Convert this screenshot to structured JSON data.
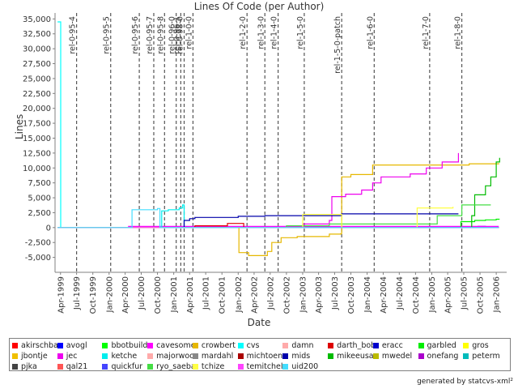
{
  "chart_data": {
    "type": "line",
    "title": "Lines Of Code (per Author)",
    "xlabel": "Date",
    "ylabel": "Lines",
    "xlim": [
      "1999-03-01",
      "2006-03-01"
    ],
    "ylim": [
      -7500,
      36000
    ],
    "y_ticks": [
      -5000,
      -2500,
      0,
      2500,
      5000,
      7500,
      10000,
      12500,
      15000,
      17500,
      20000,
      22500,
      25000,
      27500,
      30000,
      32500,
      35000
    ],
    "y_tick_labels": [
      "-5,000",
      "-2,500",
      "0",
      "2,500",
      "5,000",
      "7,500",
      "10,000",
      "12,500",
      "15,000",
      "17,500",
      "20,000",
      "22,500",
      "25,000",
      "27,500",
      "30,000",
      "32,500",
      "35,000"
    ],
    "x_ticks": [
      "1999-04-01",
      "1999-07-01",
      "1999-10-01",
      "2000-01-01",
      "2000-04-01",
      "2000-07-01",
      "2000-10-01",
      "2001-01-01",
      "2001-04-01",
      "2001-07-01",
      "2001-10-01",
      "2002-01-01",
      "2002-04-01",
      "2002-07-01",
      "2002-10-01",
      "2003-01-01",
      "2003-04-01",
      "2003-07-01",
      "2003-10-01",
      "2004-01-01",
      "2004-04-01",
      "2004-07-01",
      "2004-10-01",
      "2005-01-01",
      "2005-04-01",
      "2005-07-01",
      "2005-10-01",
      "2006-01-01"
    ],
    "x_tick_labels": [
      "Apr-1999",
      "Jul-1999",
      "Oct-1999",
      "Jan-2000",
      "Apr-2000",
      "Jul-2000",
      "Oct-2000",
      "Jan-2001",
      "Apr-2001",
      "Jul-2001",
      "Oct-2001",
      "Jan-2002",
      "Apr-2002",
      "Jul-2002",
      "Oct-2002",
      "Jan-2003",
      "Apr-2003",
      "Jul-2003",
      "Oct-2003",
      "Jan-2004",
      "Apr-2004",
      "Jul-2004",
      "Oct-2004",
      "Jan-2005",
      "Apr-2005",
      "Jul-2005",
      "Oct-2005",
      "Jan-2006"
    ],
    "grid": false,
    "legend_position": "bottom",
    "markers": [
      {
        "date": "1999-07-01",
        "label": "rel-0-95-4"
      },
      {
        "date": "2000-01-10",
        "label": "rel-0-95-5"
      },
      {
        "date": "2000-06-20",
        "label": "rel-0-95-6"
      },
      {
        "date": "2000-09-10",
        "label": "rel-0-95-7"
      },
      {
        "date": "2000-11-10",
        "label": "rel-0-95-8"
      },
      {
        "date": "2001-01-15",
        "label": "rel-0-96-0"
      },
      {
        "date": "2001-02-10",
        "label": "rel-0-96-1"
      },
      {
        "date": "2001-03-01",
        "label": "rel-0-98-0"
      },
      {
        "date": "2001-04-20",
        "label": "rel-1-0-0"
      },
      {
        "date": "2002-02-20",
        "label": "rel-1-2-0"
      },
      {
        "date": "2002-06-01",
        "label": "rel-1-3-0"
      },
      {
        "date": "2002-08-15",
        "label": "rel-1-4-0"
      },
      {
        "date": "2003-01-10",
        "label": "rel-1-5-0"
      },
      {
        "date": "2003-08-10",
        "label": "rel-1-5-0-patch"
      },
      {
        "date": "2004-02-10",
        "label": "rel-1-6-0"
      },
      {
        "date": "2004-12-20",
        "label": "rel-1-7-0"
      },
      {
        "date": "2005-06-20",
        "label": "rel-1-8-0"
      }
    ],
    "series": [
      {
        "name": "akirschbaum",
        "color": "#ff0000",
        "points": [
          [
            "1999-03-15",
            0
          ],
          [
            "2006-01-15",
            0
          ]
        ]
      },
      {
        "name": "avogl",
        "color": "#0000ff",
        "points": [
          [
            "1999-03-15",
            0
          ],
          [
            "2005-09-01",
            0
          ],
          [
            "2005-09-20",
            200
          ],
          [
            "2005-11-01",
            150
          ],
          [
            "2005-12-01",
            0
          ]
        ]
      },
      {
        "name": "bbotbuilder",
        "color": "#00ff00",
        "points": [
          [
            "1999-03-15",
            0
          ],
          [
            "2006-01-15",
            0
          ]
        ]
      },
      {
        "name": "cavesomething",
        "color": "#ff00ff",
        "points": [
          [
            "1999-03-15",
            0
          ],
          [
            "2000-03-20",
            0
          ],
          [
            "2000-04-20",
            200
          ],
          [
            "2006-01-15",
            200
          ]
        ]
      },
      {
        "name": "crowbert",
        "color": "#e6b800",
        "points": [
          [
            "1999-03-15",
            0
          ],
          [
            "2001-06-01",
            0
          ],
          [
            "2001-12-20",
            0
          ],
          [
            "2002-01-05",
            -4200
          ],
          [
            "2002-03-01",
            -4700
          ],
          [
            "2002-06-01",
            -4700
          ],
          [
            "2002-06-15",
            -4000
          ],
          [
            "2002-07-10",
            -2500
          ],
          [
            "2002-09-01",
            -1700
          ],
          [
            "2002-12-01",
            -1500
          ],
          [
            "2003-06-01",
            -1100
          ],
          [
            "2003-08-05",
            -1000
          ],
          [
            "2003-08-10",
            8500
          ],
          [
            "2003-10-01",
            8900
          ],
          [
            "2004-02-01",
            10500
          ],
          [
            "2005-06-01",
            10500
          ],
          [
            "2005-08-01",
            10700
          ],
          [
            "2006-01-15",
            10800
          ]
        ]
      },
      {
        "name": "cvs",
        "color": "#00ffff",
        "points": [
          [
            "1999-03-15",
            34500
          ],
          [
            "1999-04-01",
            34500
          ],
          [
            "1999-04-02",
            0
          ],
          [
            "2006-01-15",
            0
          ]
        ]
      },
      {
        "name": "damn",
        "color": "#ffaaaa",
        "points": [
          [
            "1999-03-15",
            0
          ],
          [
            "2006-01-15",
            0
          ]
        ]
      },
      {
        "name": "darth_bob",
        "color": "#dd0000",
        "points": [
          [
            "1999-03-15",
            0
          ],
          [
            "2001-03-01",
            0
          ],
          [
            "2001-05-01",
            300
          ],
          [
            "2001-09-01",
            300
          ],
          [
            "2001-11-01",
            700
          ],
          [
            "2002-01-01",
            700
          ],
          [
            "2002-02-01",
            0
          ],
          [
            "2006-01-15",
            0
          ]
        ]
      },
      {
        "name": "eracc",
        "color": "#0000cc",
        "points": [
          [
            "1999-03-15",
            0
          ],
          [
            "2006-01-15",
            0
          ]
        ]
      },
      {
        "name": "garbled",
        "color": "#00ee00",
        "points": [
          [
            "1999-03-15",
            0
          ],
          [
            "2005-06-01",
            0
          ],
          [
            "2005-06-15",
            1000
          ],
          [
            "2005-09-01",
            1200
          ],
          [
            "2005-11-01",
            1300
          ],
          [
            "2006-01-01",
            1400
          ],
          [
            "2006-01-20",
            1400
          ]
        ]
      },
      {
        "name": "gros",
        "color": "#ffff00",
        "points": [
          [
            "1999-03-15",
            0
          ],
          [
            "2006-01-15",
            0
          ]
        ]
      },
      {
        "name": "jbontje",
        "color": "#f0c000",
        "points": [
          [
            "1999-03-15",
            0
          ],
          [
            "2006-01-15",
            0
          ]
        ]
      },
      {
        "name": "jec",
        "color": "#ee00ee",
        "points": [
          [
            "1999-03-15",
            0
          ],
          [
            "2002-10-01",
            0
          ],
          [
            "2003-01-01",
            600
          ],
          [
            "2003-06-01",
            1200
          ],
          [
            "2003-06-15",
            5200
          ],
          [
            "2003-09-01",
            5600
          ],
          [
            "2003-12-01",
            6300
          ],
          [
            "2004-02-01",
            7500
          ],
          [
            "2004-03-20",
            8500
          ],
          [
            "2004-09-01",
            9000
          ],
          [
            "2004-12-01",
            10000
          ],
          [
            "2005-02-01",
            10000
          ],
          [
            "2005-03-01",
            11000
          ],
          [
            "2005-06-01",
            12500
          ]
        ]
      },
      {
        "name": "ketche",
        "color": "#00eeee",
        "points": [
          [
            "1999-03-15",
            0
          ],
          [
            "2000-10-20",
            0
          ],
          [
            "2000-10-25",
            2800
          ],
          [
            "2000-12-01",
            3000
          ],
          [
            "2001-02-01",
            3300
          ],
          [
            "2001-02-20",
            3800
          ],
          [
            "2001-03-01",
            0
          ],
          [
            "2006-01-15",
            0
          ]
        ]
      },
      {
        "name": "majorwoo",
        "color": "#ffaaaa",
        "points": [
          [
            "1999-03-15",
            0
          ],
          [
            "2006-01-15",
            0
          ]
        ]
      },
      {
        "name": "mardahl",
        "color": "#888888",
        "points": [
          [
            "1999-03-15",
            0
          ],
          [
            "2006-01-15",
            0
          ]
        ]
      },
      {
        "name": "michtoen",
        "color": "#aa0000",
        "points": [
          [
            "1999-03-15",
            0
          ],
          [
            "2006-01-15",
            0
          ]
        ]
      },
      {
        "name": "mids",
        "color": "#0000aa",
        "points": [
          [
            "1999-03-15",
            0
          ],
          [
            "2001-02-01",
            0
          ],
          [
            "2001-03-01",
            1200
          ],
          [
            "2001-04-01",
            1500
          ],
          [
            "2001-05-01",
            1700
          ],
          [
            "2002-01-01",
            1900
          ],
          [
            "2002-06-01",
            2000
          ],
          [
            "2003-08-01",
            2000
          ],
          [
            "2003-08-10",
            2300
          ],
          [
            "2005-06-01",
            2300
          ]
        ]
      },
      {
        "name": "mikeeusa",
        "color": "#00bb00",
        "points": [
          [
            "1999-03-15",
            0
          ],
          [
            "2005-08-01",
            0
          ],
          [
            "2005-08-15",
            2000
          ],
          [
            "2005-09-01",
            5500
          ],
          [
            "2005-11-01",
            7000
          ],
          [
            "2005-12-01",
            8500
          ],
          [
            "2006-01-01",
            11000
          ],
          [
            "2006-01-20",
            11700
          ]
        ]
      },
      {
        "name": "mwedel",
        "color": "#bbbb00",
        "points": [
          [
            "1999-03-15",
            0
          ],
          [
            "2006-01-15",
            0
          ]
        ]
      },
      {
        "name": "onefang",
        "color": "#aa00cc",
        "points": [
          [
            "1999-03-15",
            0
          ],
          [
            "2006-01-15",
            0
          ]
        ]
      },
      {
        "name": "peterm",
        "color": "#00bbbb",
        "points": [
          [
            "1999-03-15",
            0
          ],
          [
            "2006-01-15",
            0
          ]
        ]
      },
      {
        "name": "pjka",
        "color": "#444444",
        "points": [
          [
            "1999-03-15",
            0
          ],
          [
            "2006-01-15",
            0
          ]
        ]
      },
      {
        "name": "qal21",
        "color": "#ff5555",
        "points": [
          [
            "1999-03-15",
            0
          ],
          [
            "2006-01-15",
            0
          ]
        ]
      },
      {
        "name": "quickfur",
        "color": "#4444ff",
        "points": [
          [
            "1999-03-15",
            0
          ],
          [
            "2006-01-15",
            0
          ]
        ]
      },
      {
        "name": "ryo_saeba",
        "color": "#44dd44",
        "points": [
          [
            "1999-03-15",
            0
          ],
          [
            "2002-06-01",
            0
          ],
          [
            "2002-10-01",
            300
          ],
          [
            "2003-06-01",
            600
          ],
          [
            "2005-01-01",
            600
          ],
          [
            "2005-02-01",
            2000
          ],
          [
            "2005-06-20",
            3800
          ],
          [
            "2005-12-01",
            3800
          ]
        ]
      },
      {
        "name": "tchize",
        "color": "#ffff44",
        "points": [
          [
            "1999-03-15",
            0
          ],
          [
            "2002-12-01",
            0
          ],
          [
            "2003-01-01",
            2200
          ],
          [
            "2003-08-01",
            2200
          ],
          [
            "2003-08-10",
            0
          ],
          [
            "2004-10-01",
            0
          ],
          [
            "2004-10-10",
            3300
          ],
          [
            "2005-05-01",
            3500
          ]
        ]
      },
      {
        "name": "temitchell",
        "color": "#ff44ff",
        "points": [
          [
            "1999-03-15",
            0
          ],
          [
            "2006-01-15",
            0
          ]
        ]
      },
      {
        "name": "uid200",
        "color": "#44ddff",
        "points": [
          [
            "1999-03-15",
            0
          ],
          [
            "2000-05-01",
            0
          ],
          [
            "2000-05-10",
            3000
          ],
          [
            "2000-10-01",
            3200
          ],
          [
            "2000-10-15",
            0
          ],
          [
            "2006-01-15",
            0
          ]
        ]
      }
    ]
  },
  "footer": {
    "generated_by": "generated by statcvs-xml²"
  }
}
